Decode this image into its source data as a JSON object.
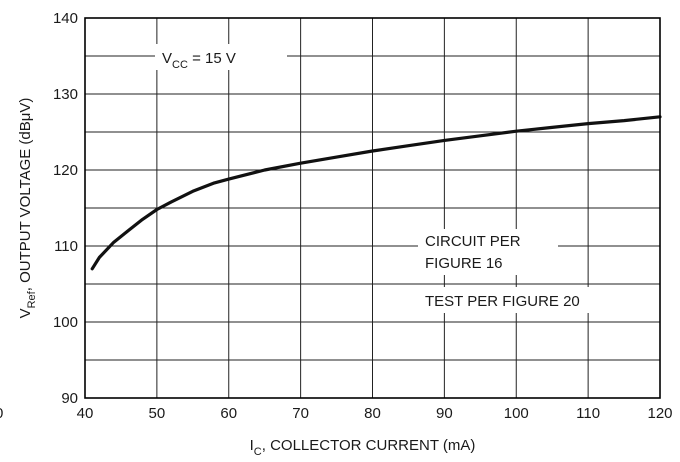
{
  "chart_data": {
    "type": "line",
    "x_range": [
      40,
      120
    ],
    "y_range": [
      90,
      140
    ],
    "x_ticks": [
      40,
      50,
      60,
      70,
      80,
      90,
      100,
      110,
      120
    ],
    "y_ticks": [
      90,
      100,
      110,
      120,
      130,
      140
    ],
    "grid": true,
    "xlabel": {
      "main": "I",
      "sub": "C",
      "rest": ", COLLECTOR CURRENT (mA)"
    },
    "ylabel": {
      "main": "V",
      "sub": "Ref",
      "rest": ", OUTPUT VOLTAGE (dBμV)"
    },
    "annotation_vcc": {
      "main": "V",
      "sub": "CC",
      "rest": " = 15 V"
    },
    "annotation_circuit": [
      "CIRCUIT PER",
      "FIGURE 16"
    ],
    "annotation_test": "TEST PER FIGURE 20",
    "stray_tick": "0",
    "series": [
      {
        "x": [
          41,
          42,
          44,
          46,
          48,
          50,
          52,
          55,
          58,
          60,
          65,
          70,
          75,
          80,
          85,
          90,
          95,
          100,
          105,
          110,
          115,
          120
        ],
        "y": [
          107,
          108.5,
          110.5,
          112,
          113.5,
          114.8,
          115.8,
          117.2,
          118.3,
          118.8,
          120,
          120.9,
          121.7,
          122.5,
          123.2,
          123.9,
          124.5,
          125.1,
          125.6,
          126.1,
          126.5,
          127
        ]
      }
    ]
  }
}
